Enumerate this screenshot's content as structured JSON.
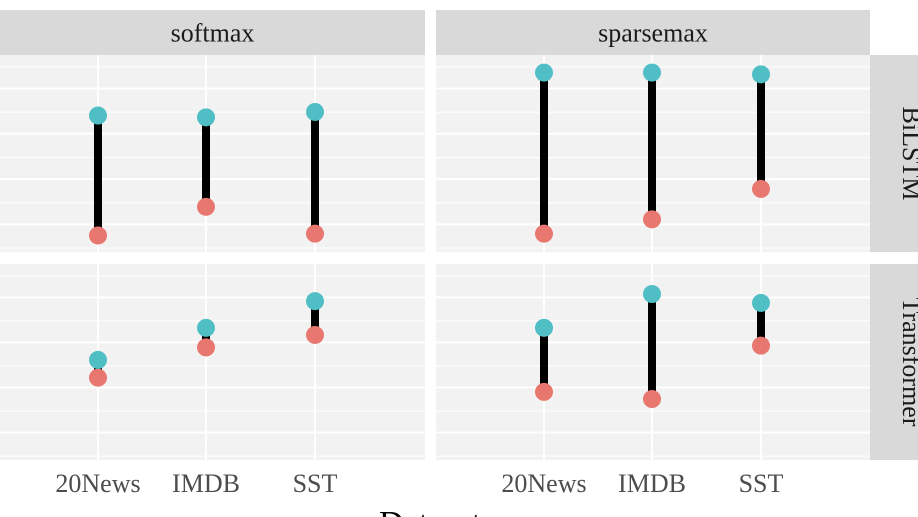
{
  "chart_data": {
    "type": "dumbbell",
    "xlabel": "Dataset",
    "categories": [
      "20News",
      "IMDB",
      "SST"
    ],
    "columns": [
      "softmax",
      "sparsemax"
    ],
    "rows": [
      "BiLSTM",
      "Transformer"
    ],
    "ylim": [
      0.0,
      1.0
    ],
    "grid": true,
    "colors": {
      "low": "#E8776F",
      "high": "#4FBFC5",
      "segment": "#000000",
      "panel": "#F2F2F2",
      "strip": "#D9D9D9",
      "grid": "#FFFFFF"
    },
    "panels": [
      {
        "column": "softmax",
        "row": "BiLSTM",
        "low": [
          0.07,
          0.23,
          0.08
        ],
        "high": [
          0.74,
          0.73,
          0.76
        ]
      },
      {
        "column": "sparsemax",
        "row": "BiLSTM",
        "low": [
          0.08,
          0.16,
          0.33
        ],
        "high": [
          0.98,
          0.98,
          0.97
        ]
      },
      {
        "column": "softmax",
        "row": "Transformer",
        "low": [
          0.44,
          0.61,
          0.68
        ],
        "high": [
          0.54,
          0.72,
          0.87
        ]
      },
      {
        "column": "sparsemax",
        "row": "Transformer",
        "low": [
          0.36,
          0.32,
          0.62
        ],
        "high": [
          0.72,
          0.91,
          0.86
        ]
      }
    ]
  }
}
